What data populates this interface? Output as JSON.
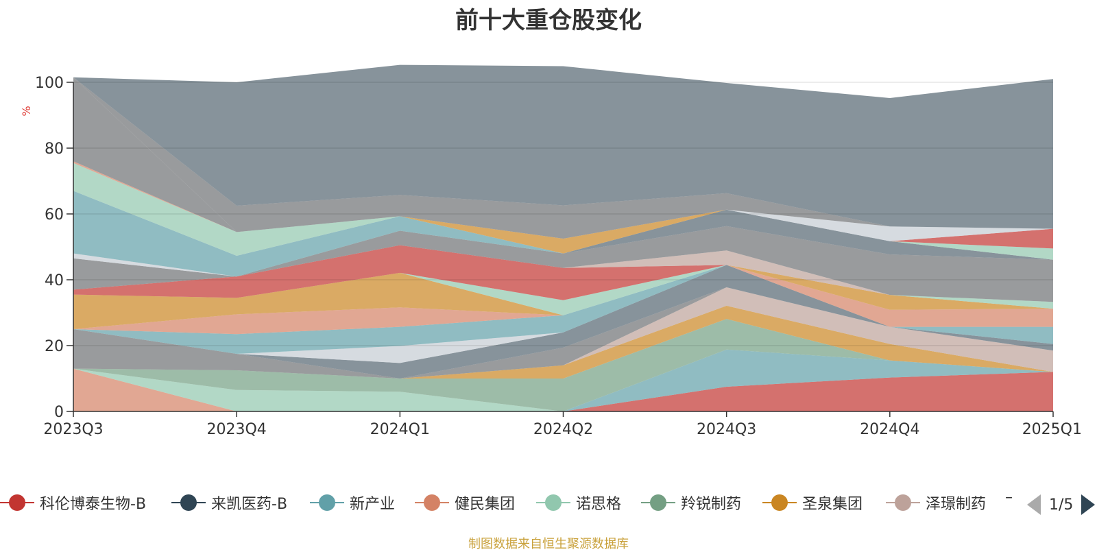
{
  "chart_data": {
    "type": "area",
    "title": "前十大重仓股变化",
    "ylabel": "%",
    "ylim": [
      0,
      100
    ],
    "yticks": [
      0,
      20,
      40,
      60,
      80,
      100
    ],
    "categories": [
      "2023Q3",
      "2023Q4",
      "2024Q1",
      "2024Q2",
      "2024Q3",
      "2024Q4",
      "2025Q1"
    ],
    "stacked": true,
    "grid": true,
    "legend_position": "bottom",
    "series": [
      {
        "name": "科伦博泰生物-B",
        "color": "#c23531",
        "values": [
          0,
          0,
          0,
          0,
          7.5,
          10.3,
          12
        ]
      },
      {
        "name": "来凯医药-B",
        "color": "#2f4554",
        "values": [
          0,
          0,
          0,
          0,
          0,
          0,
          0
        ]
      },
      {
        "name": "新产业",
        "color": "#61a0a8",
        "values": [
          0,
          0,
          0,
          0,
          11.3,
          5.2,
          0
        ]
      },
      {
        "name": "健民集团",
        "color": "#d48265",
        "values": [
          13,
          0,
          0,
          0,
          0,
          0,
          0
        ]
      },
      {
        "name": "诺思格",
        "color": "#91c7ae",
        "values": [
          0,
          6.5,
          6,
          0,
          0,
          0,
          0
        ]
      },
      {
        "name": "羚锐制药",
        "color": "#749f83",
        "values": [
          0,
          6,
          4,
          10,
          9.3,
          0,
          0
        ]
      },
      {
        "name": "圣泉集团",
        "color": "#ca8622",
        "values": [
          0,
          0,
          0,
          4,
          4,
          5,
          0
        ]
      },
      {
        "name": "泽璟制药",
        "color": "#bda29a",
        "values": [
          0,
          0,
          0,
          0,
          5.6,
          5.2,
          6.5
        ]
      },
      {
        "color": "#6e7074",
        "values": [
          12,
          5,
          0,
          5.4,
          0,
          0,
          0
        ]
      },
      {
        "color": "#546570",
        "values": [
          0,
          0,
          4.7,
          4.6,
          6.8,
          0,
          2
        ]
      },
      {
        "color": "#c4ccd3",
        "values": [
          0,
          0,
          5.2,
          0,
          0,
          0,
          0
        ]
      },
      {
        "color": "#61a0a8",
        "values": [
          0,
          6,
          5.8,
          5.2,
          0,
          0,
          5.2
        ]
      },
      {
        "color": "#d48265",
        "values": [
          0,
          6,
          5.9,
          0,
          0,
          5.2,
          5.5
        ]
      },
      {
        "color": "#ca8622",
        "values": [
          10.5,
          5,
          10.5,
          0,
          0,
          4.5,
          0
        ]
      },
      {
        "color": "#91c7ae",
        "values": [
          0,
          0,
          0,
          4.6,
          0,
          0,
          2.1
        ]
      },
      {
        "color": "#749f83",
        "values": [
          0,
          0,
          0,
          0,
          0,
          0,
          0
        ]
      },
      {
        "color": "#c23531",
        "values": [
          1.5,
          6.5,
          8.4,
          9.8,
          0,
          0,
          0
        ]
      },
      {
        "color": "#bda29a",
        "values": [
          0,
          0,
          0,
          0,
          4.4,
          0,
          0
        ]
      },
      {
        "color": "#6e7074",
        "values": [
          9.5,
          0,
          4.4,
          4.4,
          7.4,
          12.3,
          12.8
        ]
      },
      {
        "color": "#546570",
        "values": [
          0,
          0,
          0,
          0,
          5,
          4,
          0
        ]
      },
      {
        "color": "#c4ccd3",
        "values": [
          1.5,
          0,
          0,
          0,
          0,
          0,
          0
        ]
      },
      {
        "color": "#61a0a8",
        "values": [
          19,
          6.3,
          4.4,
          0,
          0,
          0,
          0
        ]
      },
      {
        "color": "#91c7ae",
        "values": [
          8.5,
          7.2,
          0,
          0,
          0,
          0,
          3.4
        ]
      },
      {
        "color": "#d48265",
        "values": [
          0.5,
          0,
          0,
          0,
          0,
          0,
          0
        ]
      },
      {
        "color": "#ca8622",
        "values": [
          0,
          0,
          0,
          4.5,
          0,
          0,
          0
        ]
      },
      {
        "color": "#c23531",
        "values": [
          0,
          0,
          0,
          0,
          0,
          0,
          6
        ]
      },
      {
        "color": "#c4ccd3",
        "values": [
          0,
          0,
          0,
          0,
          0,
          4.5,
          0
        ]
      },
      {
        "color": "#6e7074",
        "values": [
          25.5,
          0,
          0,
          0,
          0,
          0,
          0
        ]
      },
      {
        "color": "#6e7074",
        "values": [
          0,
          8,
          6.5,
          10.1,
          5,
          0,
          0
        ]
      },
      {
        "color": "#546570",
        "values": [
          0,
          37.5,
          39.5,
          42.3,
          33.5,
          39,
          45.5
        ]
      }
    ]
  },
  "legend": {
    "items": [
      {
        "label": "科伦博泰生物-B",
        "color": "#c23531"
      },
      {
        "label": "来凯医药-B",
        "color": "#2f4554"
      },
      {
        "label": "新产业",
        "color": "#61a0a8"
      },
      {
        "label": "健民集团",
        "color": "#d48265"
      },
      {
        "label": "诺思格",
        "color": "#91c7ae"
      },
      {
        "label": "羚锐制药",
        "color": "#749f83"
      },
      {
        "label": "圣泉集团",
        "color": "#ca8622"
      },
      {
        "label": "泽璟制药",
        "color": "#bda29a"
      }
    ],
    "more_marker": "–",
    "page_text": "1/5",
    "prev_icon": "triangle-left-icon",
    "next_icon": "triangle-right-icon"
  },
  "source_note": "制图数据来自恒生聚源数据库"
}
